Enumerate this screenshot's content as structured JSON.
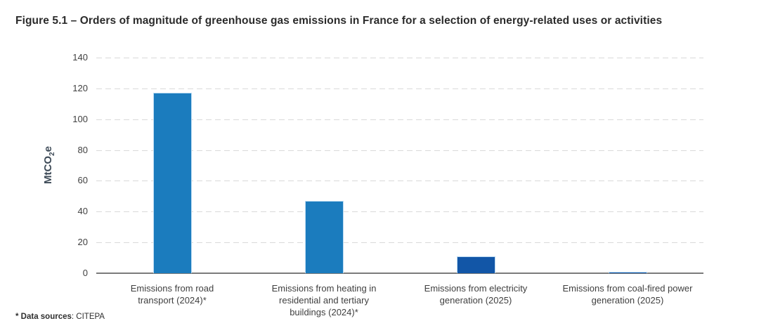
{
  "figure": {
    "title": "Figure 5.1 – Orders of magnitude of greenhouse gas emissions in France for a selection of energy-related uses or activities",
    "footnote_bold": "* Data sources",
    "footnote_rest": ": CITEPA"
  },
  "ylabel_parts": {
    "main": "MtCO",
    "sub": "2",
    "end": "e"
  },
  "chart_data": {
    "type": "bar",
    "title": "Figure 5.1 – Orders of magnitude of greenhouse gas emissions in France for a selection of energy-related uses or activities",
    "xlabel": "",
    "ylabel": "MtCO2e",
    "categories": [
      "Emissions from road\ntransport (2024)*",
      "Emissions from heating in\nresidential and tertiary\nbuildings (2024)*",
      "Emissions from electricity\ngeneration (2025)",
      "Emissions from coal-fired power\ngeneration (2025)"
    ],
    "values": [
      117,
      47,
      11,
      0.8
    ],
    "bar_colors": [
      "#1b7cbe",
      "#1b7cbe",
      "#1256a7",
      "#1256a7"
    ],
    "ylim": [
      0,
      140
    ],
    "yticks": [
      0,
      20,
      40,
      60,
      80,
      100,
      120,
      140
    ],
    "grid": "horizontal-dashed",
    "legend": "none",
    "source": "CITEPA"
  },
  "colors": {
    "bar_light_blue": "#1b7cbe",
    "bar_dark_blue": "#1256a7",
    "gridline": "#d9d9d9",
    "baseline": "#7b7b7b",
    "axis_text": "#404040",
    "title_text": "#2b2b2b",
    "ylabel_text": "#3d4a57"
  }
}
